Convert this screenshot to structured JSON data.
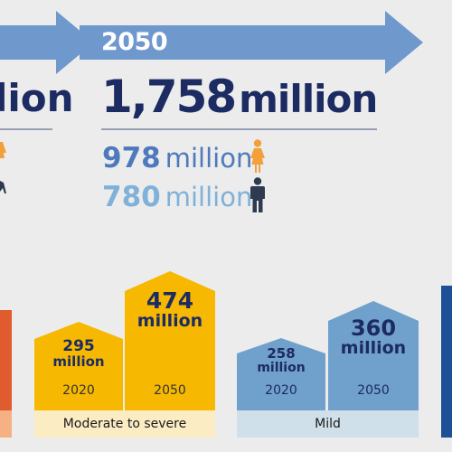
{
  "colors": {
    "navy": "#1c2b62",
    "arrow": "#6f98cd",
    "female": "#4e79bd",
    "male": "#7fb1d9",
    "female_icon": "#f3a03a",
    "male_icon": "#2e3a4f",
    "profound": "#e05b2e",
    "moderate": "#f6b800",
    "moderate_strip": "#fbecc4",
    "mild": "#70a0cc",
    "mild_strip": "#cfe0ea",
    "deep_blue": "#1f4f95"
  },
  "header": {
    "year": "2050",
    "left_total_unit": "lion",
    "total_number": "1,758",
    "total_unit": "million"
  },
  "gender": {
    "female": {
      "number": "978",
      "unit": "million",
      "icon": "female-icon"
    },
    "male": {
      "number": "780",
      "unit": "million",
      "icon": "male-icon"
    }
  },
  "groups": [
    {
      "category": "Moderate to severe",
      "bars": [
        {
          "year": "2020",
          "value_number": "295",
          "value_unit": "million"
        },
        {
          "year": "2050",
          "value_number": "474",
          "value_unit": "million"
        }
      ]
    },
    {
      "category": "Mild",
      "bars": [
        {
          "year": "2020",
          "value_number": "258",
          "value_unit": "million"
        },
        {
          "year": "2050",
          "value_number": "360",
          "value_unit": "million"
        }
      ]
    }
  ]
}
